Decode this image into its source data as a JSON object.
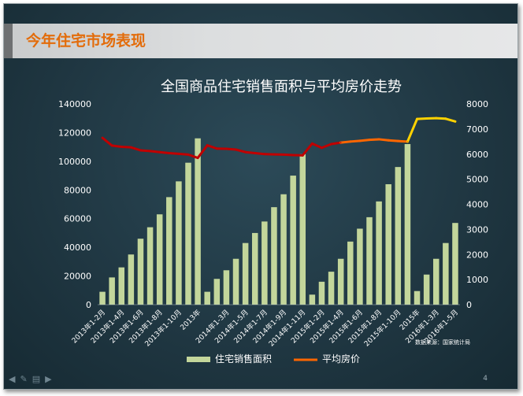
{
  "slide": {
    "title": "今年住宅市场表现",
    "page_number": "4",
    "nav_icons": [
      "arrow-left-icon",
      "pen-icon",
      "slides-icon",
      "arrow-right-icon"
    ]
  },
  "colors": {
    "bar": "#c3d69b",
    "line_dark_red": "#c00000",
    "line_orange": "#ff6600",
    "line_yellow": "#ffd200",
    "axis_text": "#ffffff",
    "title_orange": "#e36c0a"
  },
  "chart_data": {
    "type": "bar+line",
    "title": "全国商品住宅销售面积与平均房价走势",
    "source": "数据来源：国家统计局",
    "y_left": {
      "min": 0,
      "max": 140000,
      "ticks": [
        0,
        20000,
        40000,
        60000,
        80000,
        100000,
        120000,
        140000
      ]
    },
    "y_right": {
      "min": 0,
      "max": 8000,
      "ticks": [
        0,
        1000,
        2000,
        3000,
        4000,
        5000,
        6000,
        7000,
        8000
      ]
    },
    "x_tick_labels": [
      "2013年1-2月",
      "2013年1-4月",
      "2013年1-6月",
      "2013年1-8月",
      "2013年1-10月",
      "2013年",
      "2014年1-3月",
      "2014年1-5月",
      "2014年1-7月",
      "2014年1-9月",
      "2014年1-11月",
      "2015年1-2月",
      "2015年1-4月",
      "2015年1-6月",
      "2015年1-8月",
      "2015年1-10月",
      "2015年",
      "2016年1-3月",
      "2016年1-5月"
    ],
    "series": [
      {
        "name": "住宅销售面积",
        "type": "bar",
        "axis": "left",
        "values": [
          9000,
          19000,
          26000,
          35000,
          46000,
          54000,
          63000,
          75000,
          86000,
          99000,
          116000,
          9000,
          18000,
          24000,
          32000,
          43000,
          50000,
          58000,
          68000,
          77000,
          90000,
          105000,
          7000,
          16000,
          23000,
          32000,
          44000,
          53000,
          61000,
          72000,
          84000,
          96000,
          112000,
          9500,
          21000,
          32000,
          43000,
          57000
        ]
      },
      {
        "name": "平均房价",
        "type": "line",
        "axis": "right",
        "values": [
          6650,
          6340,
          6290,
          6270,
          6150,
          6120,
          6080,
          6040,
          6010,
          5980,
          5850,
          6350,
          6220,
          6210,
          6180,
          6080,
          6040,
          6000,
          5990,
          5980,
          5960,
          5950,
          6420,
          6250,
          6400,
          6460,
          6500,
          6530,
          6570,
          6590,
          6550,
          6520,
          6500,
          7400,
          7420,
          7430,
          7410,
          7300
        ]
      }
    ],
    "legend": {
      "placement": "bottom-center"
    }
  }
}
